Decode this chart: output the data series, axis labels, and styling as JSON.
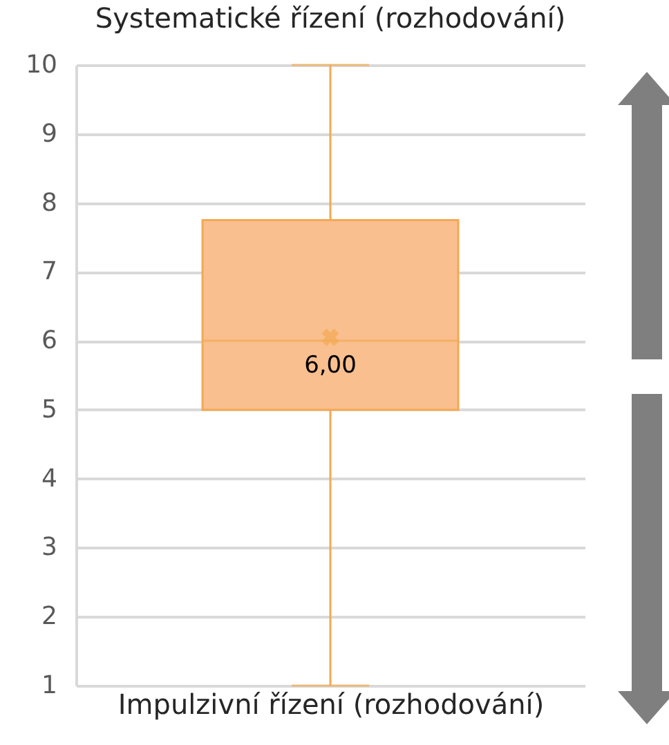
{
  "chart_data": {
    "type": "box",
    "title": "Systematické řízení (rozhodování)",
    "xlabel": "Impulzivní řízení (rozhodování)",
    "categories": [
      null
    ],
    "boxes": [
      {
        "low": 1,
        "q1": 5,
        "median": 6,
        "q3": 7.75,
        "high": 10,
        "mean": 6.05
      }
    ],
    "color": "#f9bf8f",
    "ylim": [
      1,
      10
    ],
    "yticks": [
      1,
      2,
      3,
      4,
      5,
      6,
      7,
      8,
      9,
      10
    ],
    "grid": "y",
    "annotations": [
      {
        "text": "6,00",
        "y": 6
      }
    ]
  }
}
